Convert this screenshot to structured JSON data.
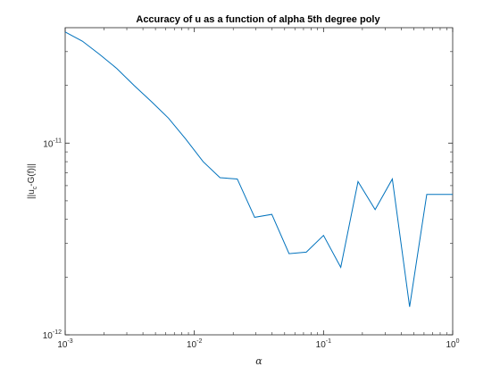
{
  "chart_data": {
    "type": "line",
    "title": "Accuracy of u as a function of alpha 5th degree poly",
    "xlabel": "α",
    "ylabel": {
      "prefix": "||u",
      "subscript": "c",
      "suffix": "-G(f)||"
    },
    "xscale": "log",
    "yscale": "log",
    "xlim": [
      0.001,
      1
    ],
    "ylim": [
      1e-12,
      4e-11
    ],
    "grid": false,
    "legend": "none",
    "line_color": "#0072BD",
    "axis_color": "#262626",
    "xticks": [
      {
        "value": 0.001,
        "base": "10",
        "exp": "-3"
      },
      {
        "value": 0.01,
        "base": "10",
        "exp": "-2"
      },
      {
        "value": 0.1,
        "base": "10",
        "exp": "-1"
      },
      {
        "value": 1,
        "base": "10",
        "exp": "0"
      }
    ],
    "yticks": [
      {
        "value": 1e-12,
        "base": "10",
        "exp": "-12"
      },
      {
        "value": 1e-11,
        "base": "10",
        "exp": "-11"
      }
    ],
    "series": [
      {
        "x": [
          0.001,
          0.00136,
          0.00185,
          0.00251,
          0.00341,
          0.00464,
          0.0063,
          0.00857,
          0.0117,
          0.0158,
          0.0215,
          0.0293,
          0.0398,
          0.0541,
          0.0736,
          0.1,
          0.136,
          0.185,
          0.251,
          0.341,
          0.464,
          0.63,
          0.857,
          1.0
        ],
        "y": [
          3.8e-11,
          3.4e-11,
          2.9e-11,
          2.45e-11,
          2e-11,
          1.65e-11,
          1.35e-11,
          1.05e-11,
          8e-12,
          6.6e-12,
          6.5e-12,
          4.1e-12,
          4.25e-12,
          2.65e-12,
          2.7e-12,
          3.3e-12,
          2.25e-12,
          6.3e-12,
          4.5e-12,
          6.5e-12,
          1.4e-12,
          5.4e-12,
          5.4e-12,
          5.4e-12
        ]
      }
    ]
  }
}
